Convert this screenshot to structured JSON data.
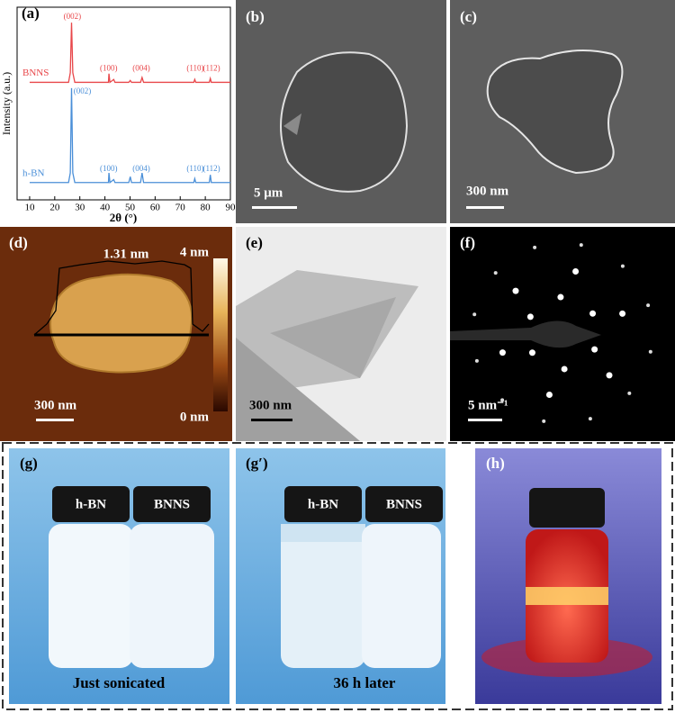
{
  "chart_data": {
    "type": "line",
    "panel_label": "(a)",
    "x_label": "2θ (°)",
    "y_label": "Intensity (a.u.)",
    "x": [
      10,
      20,
      25.5,
      26.2,
      26.7,
      27.2,
      28,
      35,
      41.4,
      41.6,
      42,
      43.5,
      44,
      49.5,
      50.1,
      50.6,
      54.2,
      54.8,
      55.4,
      65,
      75.4,
      75.8,
      76.2,
      81.6,
      82,
      82.4,
      90
    ],
    "series": [
      {
        "name": "BNNS",
        "color": "#e8474a",
        "values": [
          61,
          61,
          61,
          66,
          92,
          66,
          61,
          61,
          61,
          65.5,
          61,
          62.5,
          61,
          61,
          62,
          61,
          61,
          63.5,
          61,
          61,
          61,
          62.5,
          61,
          61,
          63,
          61,
          61
        ]
      },
      {
        "name": "h-BN",
        "color": "#4a8fd8",
        "values": [
          9,
          9,
          9,
          14,
          58,
          14,
          9,
          9,
          9,
          14,
          9,
          10.5,
          9,
          9,
          12,
          9,
          9,
          14,
          9,
          9,
          9,
          11,
          9,
          9,
          13,
          9,
          9
        ]
      }
    ],
    "annotations": [
      {
        "text": "(002)",
        "x": 27,
        "y": 95,
        "color": "#e8474a"
      },
      {
        "text": "(100)",
        "x": 41.5,
        "y": 68,
        "color": "#e8474a"
      },
      {
        "text": "(004)",
        "x": 54.5,
        "y": 68,
        "color": "#e8474a"
      },
      {
        "text": "(110)",
        "x": 76,
        "y": 68,
        "color": "#e8474a"
      },
      {
        "text": "(112)",
        "x": 82.5,
        "y": 68,
        "color": "#e8474a"
      },
      {
        "text": "(002)",
        "x": 31,
        "y": 56,
        "color": "#4a8fd8"
      },
      {
        "text": "(100)",
        "x": 41.5,
        "y": 16,
        "color": "#4a8fd8"
      },
      {
        "text": "(004)",
        "x": 54.5,
        "y": 16,
        "color": "#4a8fd8"
      },
      {
        "text": "(110)",
        "x": 76,
        "y": 16,
        "color": "#4a8fd8"
      },
      {
        "text": "(112)",
        "x": 82.5,
        "y": 16,
        "color": "#4a8fd8"
      }
    ],
    "xlim": [
      5,
      90
    ],
    "ylim": [
      0,
      100
    ],
    "xticks": [
      10,
      20,
      30,
      40,
      50,
      60,
      70,
      80,
      90
    ]
  },
  "panel_b": {
    "label": "(b)",
    "scale_bar": "5 μm"
  },
  "panel_c": {
    "label": "(c)",
    "scale_bar": "300 nm"
  },
  "panel_d": {
    "label": "(d)",
    "height": "1.31 nm",
    "colorbar_max": "4 nm",
    "colorbar_min": "0 nm",
    "scale_bar": "300 nm"
  },
  "panel_e": {
    "label": "(e)",
    "scale_bar": "300 nm"
  },
  "panel_f": {
    "label": "(f)",
    "scale_bar": "5 nm⁻¹"
  },
  "panel_g": {
    "label": "(g)",
    "vial_left": "h-BN",
    "vial_right": "BNNS",
    "caption": "Just sonicated"
  },
  "panel_g2": {
    "label": "(g′)",
    "vial_left": "h-BN",
    "vial_right": "BNNS",
    "caption": "36 h later"
  },
  "panel_h": {
    "label": "(h)"
  }
}
